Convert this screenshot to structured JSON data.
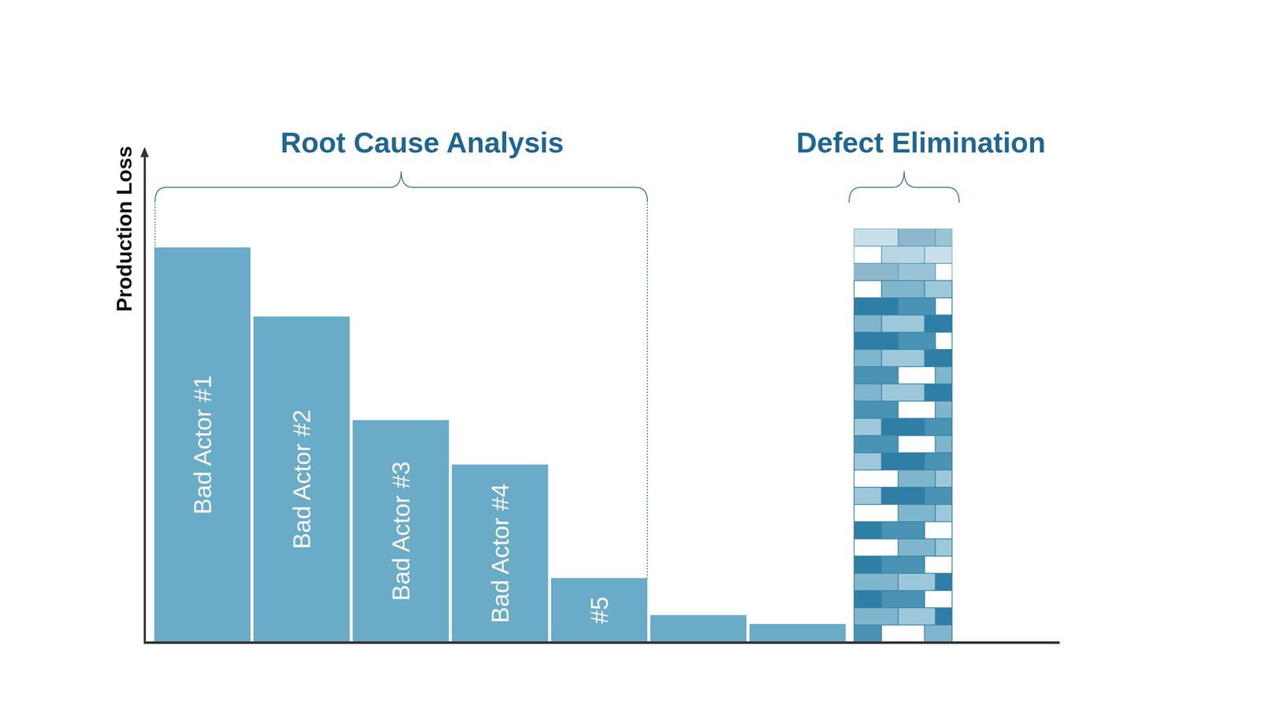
{
  "chart_data": {
    "type": "bar",
    "categories": [
      "Bad Actor #1",
      "Bad Actor #2",
      "Bad Actor #3",
      "Bad Actor #4",
      "#5",
      null,
      null
    ],
    "values": [
      80,
      66,
      45,
      36,
      13,
      5.5,
      3.7
    ],
    "color": "#6aabc8",
    "ylim": [
      0,
      100
    ],
    "yticks": [],
    "y_label": "Production Loss",
    "annotations": [
      "Root Cause Analysis",
      "Defect Elimination"
    ],
    "grid": false,
    "tick_labels": false
  }
}
